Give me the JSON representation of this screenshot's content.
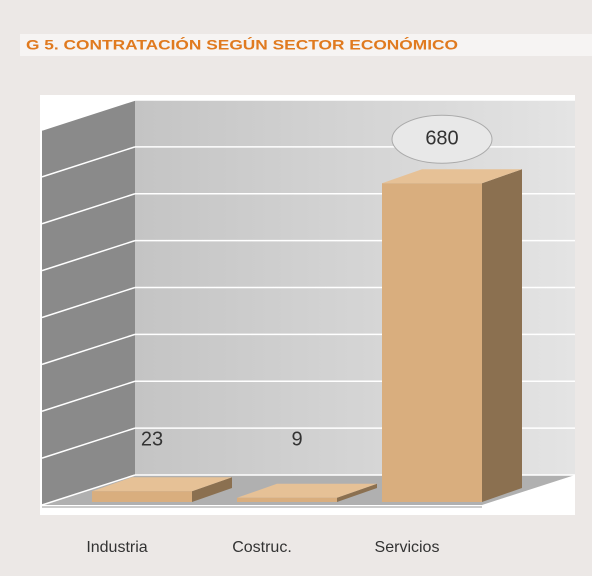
{
  "chart_data": {
    "type": "bar3d",
    "title": "G 5. CONTRATACIÓN  SEGÚN SECTOR ECONÓMICO",
    "categories": [
      "Industria",
      "Costruc.",
      "Servicios"
    ],
    "values": [
      23,
      9,
      680
    ],
    "color": "#d9ae7e",
    "ylim": [
      0,
      800
    ],
    "yticks": [
      0,
      100,
      200,
      300,
      400,
      500,
      600,
      700,
      800
    ],
    "grid": true
  }
}
